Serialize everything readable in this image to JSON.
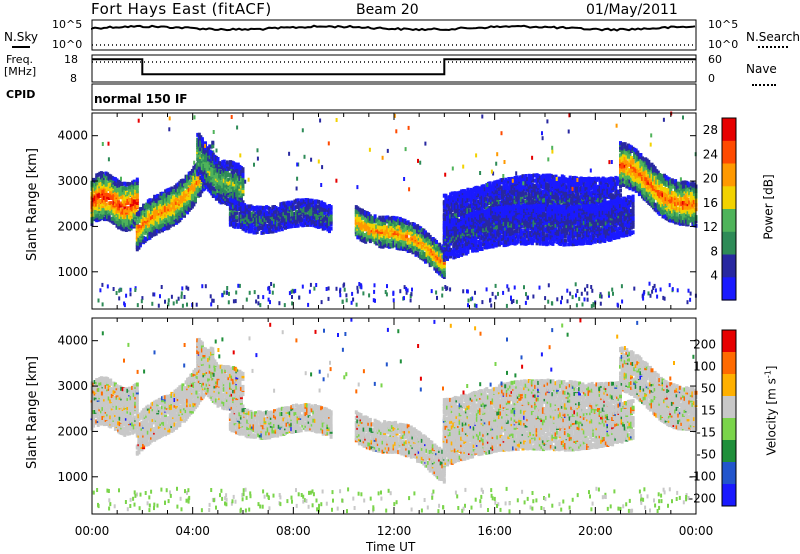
{
  "header": {
    "station": "Fort Hays East (fitACF)",
    "beam": "Beam 20",
    "date": "01/May/2011"
  },
  "status_panel": {
    "nsky_label": "N.Sky",
    "nsearch_label": "N.Search",
    "noise_tick_top": "10^5",
    "noise_tick_bottom": "10^0",
    "freq_label_line1": "Freq.",
    "freq_label_line2": "[MHz]",
    "freq_tick_top": "18",
    "freq_tick_bottom": "8",
    "nave_label": "Nave",
    "nave_tick_top": "60",
    "nave_tick_bottom": "0",
    "cpid_label": "CPID",
    "cpid_value": "normal 150 IF",
    "freq_steps": [
      {
        "start_hour": 0,
        "end_hour": 2.0,
        "mhz": 17
      },
      {
        "start_hour": 2.0,
        "end_hour": 14.0,
        "mhz": 10.5
      },
      {
        "start_hour": 14.0,
        "end_hour": 24,
        "mhz": 17
      }
    ]
  },
  "chart_data": [
    {
      "type": "heatmap",
      "name_panel": "power",
      "xlabel": "Time UT",
      "ylabel": "Slant Range [km]",
      "xlim": [
        0,
        24
      ],
      "ylim": [
        180,
        4500
      ],
      "x_ticks": [
        "00:00",
        "04:00",
        "08:00",
        "12:00",
        "16:00",
        "20:00",
        "00:00"
      ],
      "y_ticks": [
        "1000",
        "2000",
        "3000",
        "4000"
      ],
      "colorbar_label": "Power [dB]",
      "colorbar_ticks": [
        "4",
        "8",
        "12",
        "16",
        "20",
        "24",
        "28"
      ],
      "colorbar_range": [
        0,
        30
      ],
      "colorscale": [
        "#1a1aff",
        "#2828a0",
        "#2e8b57",
        "#4fb35a",
        "#f2d200",
        "#ff9900",
        "#ff4a00",
        "#e60000"
      ],
      "echo_bands": [
        {
          "t0": 0.0,
          "t1": 1.8,
          "r0": 2550,
          "r1": 2550,
          "width": 500,
          "peak_db": 27
        },
        {
          "t0": 1.8,
          "t1": 4.8,
          "r0": 1800,
          "r1": 3350,
          "width": 400,
          "peak_db": 22
        },
        {
          "t0": 4.2,
          "t1": 6.0,
          "r0": 3500,
          "r1": 2700,
          "width": 450,
          "peak_db": 14
        },
        {
          "t0": 5.5,
          "t1": 9.5,
          "r0": 2300,
          "r1": 2150,
          "width": 250,
          "peak_db": 8
        },
        {
          "t0": 10.5,
          "t1": 14.0,
          "r0": 2200,
          "r1": 1300,
          "width": 300,
          "peak_db": 22
        },
        {
          "t0": 14.0,
          "t1": 21.0,
          "r0": 2300,
          "r1": 2700,
          "width": 500,
          "peak_db": 6
        },
        {
          "t0": 14.0,
          "t1": 21.5,
          "r0": 1700,
          "r1": 2300,
          "width": 400,
          "peak_db": 6
        },
        {
          "t0": 21.0,
          "t1": 24.0,
          "r0": 3300,
          "r1": 2400,
          "width": 450,
          "peak_db": 24
        }
      ]
    },
    {
      "type": "heatmap",
      "name_panel": "velocity",
      "xlabel": "Time UT",
      "ylabel": "Slant Range [km]",
      "xlim": [
        0,
        24
      ],
      "ylim": [
        180,
        4500
      ],
      "x_ticks": [
        "00:00",
        "04:00",
        "08:00",
        "12:00",
        "16:00",
        "20:00",
        "00:00"
      ],
      "y_ticks": [
        "1000",
        "2000",
        "3000",
        "4000"
      ],
      "colorbar_label": "Velocity [m s^-1]",
      "colorbar_ticks": [
        "200",
        "100",
        "50",
        "15",
        "-15",
        "-50",
        "-100",
        "-200"
      ],
      "colorbar_range": [
        -250,
        250
      ],
      "colorscale": [
        "#1a1aff",
        "#2255cc",
        "#1f8f3a",
        "#7ad44a",
        "#c8c8c8",
        "#ffb000",
        "#ff6a00",
        "#e60000"
      ],
      "echo_bands": [
        {
          "t0": 0.0,
          "t1": 1.8,
          "r0": 2550,
          "r1": 2550,
          "width": 500,
          "vel": 0
        },
        {
          "t0": 1.8,
          "t1": 4.8,
          "r0": 1800,
          "r1": 3350,
          "width": 400,
          "vel": -40
        },
        {
          "t0": 4.2,
          "t1": 6.0,
          "r0": 3500,
          "r1": 2700,
          "width": 450,
          "vel": -20
        },
        {
          "t0": 5.5,
          "t1": 9.5,
          "r0": 2300,
          "r1": 2150,
          "width": 250,
          "vel": 0
        },
        {
          "t0": 10.5,
          "t1": 14.0,
          "r0": 2200,
          "r1": 1300,
          "width": 300,
          "vel": 0
        },
        {
          "t0": 14.0,
          "t1": 21.0,
          "r0": 2300,
          "r1": 2700,
          "width": 500,
          "vel": 0
        },
        {
          "t0": 14.0,
          "t1": 21.5,
          "r0": 1700,
          "r1": 2300,
          "width": 400,
          "vel": 0
        },
        {
          "t0": 21.0,
          "t1": 24.0,
          "r0": 3300,
          "r1": 2400,
          "width": 450,
          "vel": 0
        }
      ]
    }
  ]
}
